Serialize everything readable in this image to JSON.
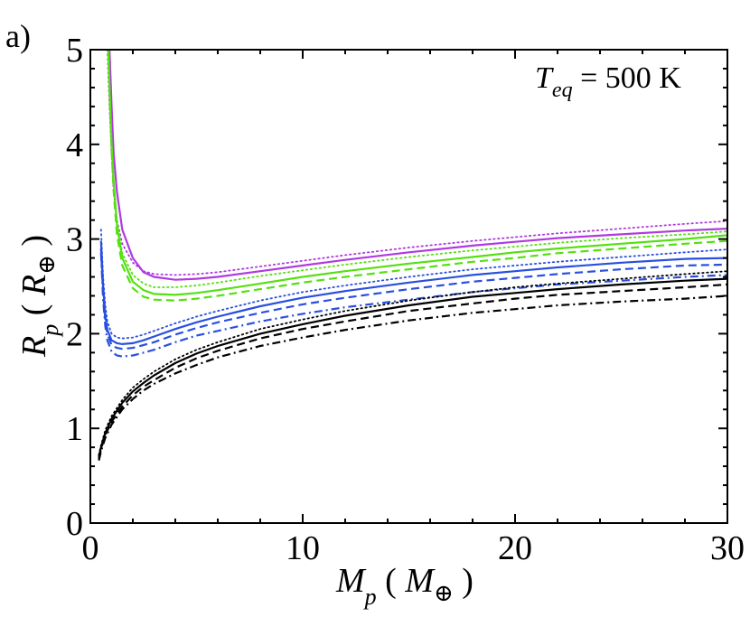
{
  "panel_label": "a)",
  "colors": {
    "magenta": "#b03ae0",
    "green": "#55e012",
    "blue": "#2a4fe0",
    "black": "#000000"
  },
  "chart_data": {
    "type": "line",
    "title": "",
    "annotation": {
      "base": "T",
      "sub": "eq",
      "text": " = 500 K"
    },
    "xlabel": {
      "base": "M",
      "sub": "p",
      "unit": "M",
      "unit_symbol": "⊕"
    },
    "ylabel": {
      "base": "R",
      "sub": "p",
      "unit": "R",
      "unit_symbol": "⊕"
    },
    "xlim": [
      0,
      30
    ],
    "ylim": [
      0,
      5
    ],
    "x_ticks": [
      0,
      10,
      20,
      30
    ],
    "y_ticks": [
      0,
      1,
      2,
      3,
      4,
      5
    ],
    "series": [
      {
        "name": "magenta-dotted",
        "color": "magenta",
        "style": "dotted",
        "x": [
          0.8,
          0.9,
          1.0,
          1.1,
          1.25,
          1.5,
          2,
          2.5,
          3,
          4,
          5,
          6,
          8,
          10,
          12,
          15,
          18,
          20,
          22,
          25,
          28,
          30
        ],
        "y": [
          5.0,
          4.4,
          3.9,
          3.5,
          3.2,
          2.95,
          2.75,
          2.66,
          2.63,
          2.62,
          2.63,
          2.65,
          2.71,
          2.77,
          2.83,
          2.91,
          2.98,
          3.02,
          3.06,
          3.11,
          3.16,
          3.19
        ]
      },
      {
        "name": "magenta-solid",
        "color": "magenta",
        "style": "solid",
        "x": [
          0.9,
          1.0,
          1.1,
          1.25,
          1.5,
          2,
          2.5,
          3,
          4,
          5,
          6,
          8,
          10,
          12,
          15,
          18,
          20,
          22,
          25,
          28,
          30
        ],
        "y": [
          5.0,
          4.4,
          3.9,
          3.5,
          3.1,
          2.8,
          2.65,
          2.6,
          2.57,
          2.58,
          2.6,
          2.66,
          2.72,
          2.78,
          2.86,
          2.93,
          2.97,
          3.01,
          3.05,
          3.09,
          3.11
        ]
      },
      {
        "name": "green-dotted",
        "color": "green",
        "style": "dotted",
        "x": [
          0.8,
          0.9,
          1.0,
          1.1,
          1.25,
          1.5,
          2,
          2.5,
          3,
          4,
          5,
          6,
          8,
          10,
          12,
          15,
          18,
          20,
          22,
          25,
          28,
          30
        ],
        "y": [
          5.0,
          4.5,
          4.0,
          3.6,
          3.2,
          2.85,
          2.62,
          2.53,
          2.49,
          2.49,
          2.51,
          2.54,
          2.61,
          2.67,
          2.73,
          2.81,
          2.88,
          2.92,
          2.96,
          3.01,
          3.05,
          3.08
        ]
      },
      {
        "name": "green-solid",
        "color": "green",
        "style": "solid",
        "x": [
          0.85,
          0.9,
          1.0,
          1.1,
          1.25,
          1.5,
          2,
          2.5,
          3,
          4,
          5,
          6,
          8,
          10,
          12,
          15,
          18,
          20,
          22,
          25,
          28,
          30
        ],
        "y": [
          5.0,
          4.6,
          4.0,
          3.6,
          3.15,
          2.8,
          2.55,
          2.46,
          2.42,
          2.41,
          2.43,
          2.46,
          2.53,
          2.6,
          2.66,
          2.74,
          2.81,
          2.86,
          2.9,
          2.95,
          3.0,
          3.04
        ]
      },
      {
        "name": "green-dashed",
        "color": "green",
        "style": "dashed",
        "x": [
          0.85,
          0.9,
          1.0,
          1.1,
          1.25,
          1.5,
          2,
          2.5,
          3,
          4,
          5,
          6,
          8,
          10,
          12,
          15,
          18,
          20,
          22,
          25,
          28,
          30
        ],
        "y": [
          5.0,
          4.55,
          3.95,
          3.5,
          3.05,
          2.72,
          2.48,
          2.39,
          2.36,
          2.35,
          2.37,
          2.4,
          2.47,
          2.54,
          2.6,
          2.68,
          2.76,
          2.8,
          2.85,
          2.9,
          2.95,
          2.98
        ]
      },
      {
        "name": "blue-dotted",
        "color": "blue",
        "style": "dotted",
        "x": [
          0.5,
          0.6,
          0.7,
          0.8,
          1.0,
          1.25,
          1.5,
          2,
          2.5,
          3,
          4,
          5,
          6,
          8,
          10,
          12,
          15,
          18,
          20,
          22,
          25,
          28,
          30
        ],
        "y": [
          3.1,
          2.6,
          2.3,
          2.13,
          2.0,
          1.96,
          1.95,
          1.96,
          1.99,
          2.03,
          2.11,
          2.18,
          2.24,
          2.35,
          2.44,
          2.51,
          2.6,
          2.68,
          2.72,
          2.76,
          2.81,
          2.86,
          2.89
        ]
      },
      {
        "name": "blue-solid",
        "color": "blue",
        "style": "solid",
        "x": [
          0.5,
          0.6,
          0.7,
          0.8,
          1.0,
          1.25,
          1.5,
          2,
          2.5,
          3,
          4,
          5,
          6,
          8,
          10,
          12,
          15,
          18,
          20,
          22,
          25,
          28,
          30
        ],
        "y": [
          2.98,
          2.5,
          2.2,
          2.04,
          1.93,
          1.9,
          1.89,
          1.9,
          1.93,
          1.97,
          2.05,
          2.12,
          2.18,
          2.29,
          2.38,
          2.45,
          2.54,
          2.62,
          2.66,
          2.7,
          2.75,
          2.79,
          2.8
        ]
      },
      {
        "name": "blue-dashed",
        "color": "blue",
        "style": "dashed",
        "x": [
          0.5,
          0.6,
          0.7,
          0.8,
          1.0,
          1.25,
          1.5,
          2,
          2.5,
          3,
          4,
          5,
          6,
          8,
          10,
          12,
          15,
          18,
          20,
          22,
          25,
          28,
          30
        ],
        "y": [
          2.9,
          2.42,
          2.15,
          2.0,
          1.88,
          1.85,
          1.84,
          1.85,
          1.88,
          1.91,
          1.99,
          2.06,
          2.12,
          2.22,
          2.31,
          2.38,
          2.47,
          2.55,
          2.59,
          2.63,
          2.68,
          2.72,
          2.73
        ]
      },
      {
        "name": "blue-dashdot",
        "color": "blue",
        "style": "dashdot",
        "x": [
          0.5,
          0.6,
          0.7,
          0.8,
          1.0,
          1.25,
          1.5,
          2,
          2.5,
          3,
          4,
          5,
          6,
          8,
          10,
          12,
          15,
          18,
          20,
          22,
          25,
          28,
          30
        ],
        "y": [
          2.85,
          2.36,
          2.08,
          1.93,
          1.81,
          1.77,
          1.76,
          1.77,
          1.8,
          1.83,
          1.91,
          1.98,
          2.03,
          2.13,
          2.21,
          2.28,
          2.36,
          2.44,
          2.48,
          2.52,
          2.56,
          2.6,
          2.62
        ]
      },
      {
        "name": "black-dotted",
        "color": "black",
        "style": "dotted",
        "x": [
          0.4,
          0.5,
          0.7,
          1.0,
          1.5,
          2,
          2.5,
          3,
          4,
          5,
          6,
          8,
          10,
          12,
          15,
          18,
          20,
          22,
          25,
          28,
          30
        ],
        "y": [
          0.72,
          0.82,
          0.98,
          1.13,
          1.3,
          1.43,
          1.52,
          1.6,
          1.73,
          1.83,
          1.91,
          2.05,
          2.15,
          2.24,
          2.35,
          2.44,
          2.49,
          2.53,
          2.58,
          2.63,
          2.66
        ]
      },
      {
        "name": "black-solid",
        "color": "black",
        "style": "solid",
        "x": [
          0.4,
          0.5,
          0.7,
          1.0,
          1.5,
          2,
          2.5,
          3,
          4,
          5,
          6,
          8,
          10,
          12,
          15,
          18,
          20,
          22,
          25,
          28,
          30
        ],
        "y": [
          0.7,
          0.8,
          0.95,
          1.1,
          1.27,
          1.39,
          1.48,
          1.56,
          1.69,
          1.79,
          1.87,
          2.0,
          2.1,
          2.19,
          2.3,
          2.39,
          2.43,
          2.47,
          2.52,
          2.56,
          2.58
        ]
      },
      {
        "name": "black-dashed",
        "color": "black",
        "style": "dashed",
        "x": [
          0.4,
          0.5,
          0.7,
          1.0,
          1.5,
          2,
          2.5,
          3,
          4,
          5,
          6,
          8,
          10,
          12,
          15,
          18,
          20,
          22,
          25,
          28,
          30
        ],
        "y": [
          0.68,
          0.78,
          0.93,
          1.07,
          1.23,
          1.35,
          1.44,
          1.51,
          1.64,
          1.74,
          1.82,
          1.95,
          2.05,
          2.13,
          2.24,
          2.32,
          2.37,
          2.41,
          2.45,
          2.49,
          2.52
        ]
      },
      {
        "name": "black-dashdot",
        "color": "black",
        "style": "dashdot",
        "x": [
          0.4,
          0.5,
          0.7,
          1.0,
          1.5,
          2,
          2.5,
          3,
          4,
          5,
          6,
          8,
          10,
          12,
          15,
          18,
          20,
          22,
          25,
          28,
          30
        ],
        "y": [
          0.66,
          0.76,
          0.9,
          1.04,
          1.2,
          1.31,
          1.4,
          1.47,
          1.58,
          1.67,
          1.75,
          1.87,
          1.96,
          2.04,
          2.14,
          2.22,
          2.26,
          2.3,
          2.34,
          2.37,
          2.4
        ]
      }
    ]
  }
}
